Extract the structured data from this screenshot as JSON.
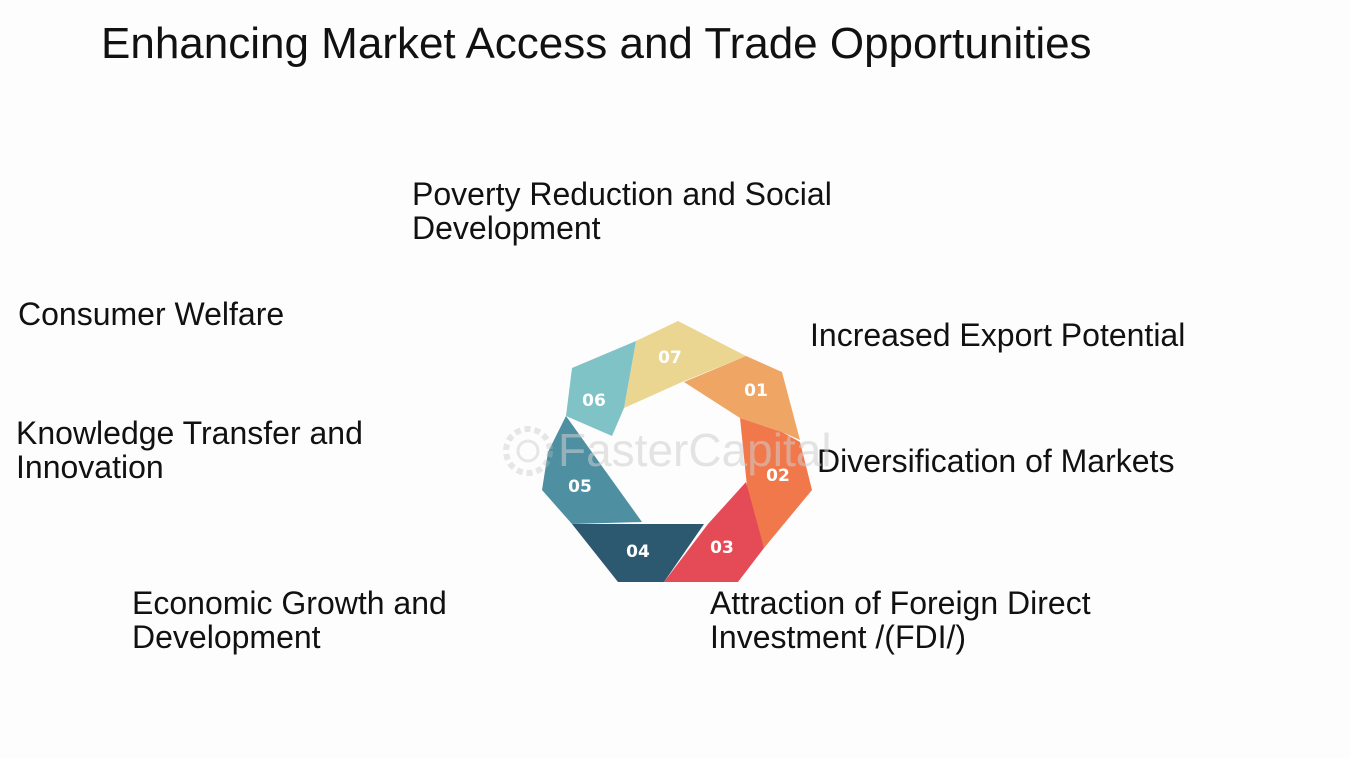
{
  "title": "Enhancing Market Access and Trade Opportunities",
  "watermark": "FasterCapital",
  "segments": [
    {
      "number": "01",
      "label": "Increased Export Potential",
      "color": "#efa665"
    },
    {
      "number": "02",
      "label": "Diversification of Markets",
      "color": "#f1784a"
    },
    {
      "number": "03",
      "label": "Attraction of Foreign Direct Investment /(FDI/)",
      "color": "#e54b57"
    },
    {
      "number": "04",
      "label": "Economic Growth and Development",
      "color": "#2c5870"
    },
    {
      "number": "05",
      "label": "Knowledge Transfer and Innovation",
      "color": "#4e8fa2"
    },
    {
      "number": "06",
      "label": "Consumer Welfare",
      "color": "#7fc3c6"
    },
    {
      "number": "07",
      "label": "Poverty Reduction and Social Development",
      "color": "#ead690"
    }
  ]
}
